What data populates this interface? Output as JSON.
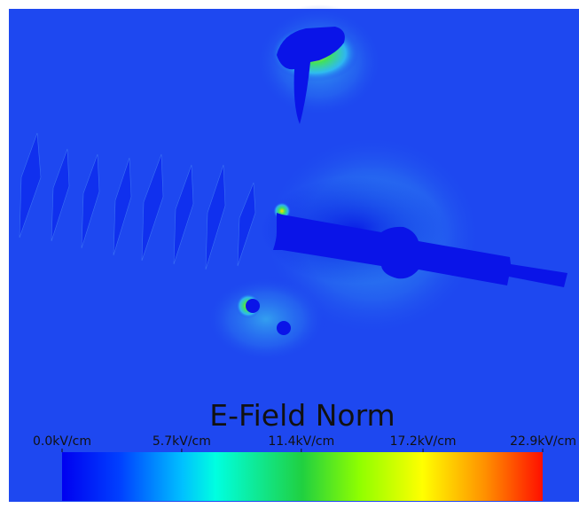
{
  "title": "E-Field Norm",
  "colorbar": {
    "range": [
      0,
      22.9
    ],
    "ticks": [
      {
        "value": 0,
        "label": "0.0kV/cm"
      },
      {
        "value": 5.7,
        "label": "5.7kV/cm"
      },
      {
        "value": 11.4,
        "label": "11.4kV/cm"
      },
      {
        "value": 17.2,
        "label": "17.2kV/cm"
      },
      {
        "value": 22.9,
        "label": "22.9kV/cm"
      }
    ]
  }
}
